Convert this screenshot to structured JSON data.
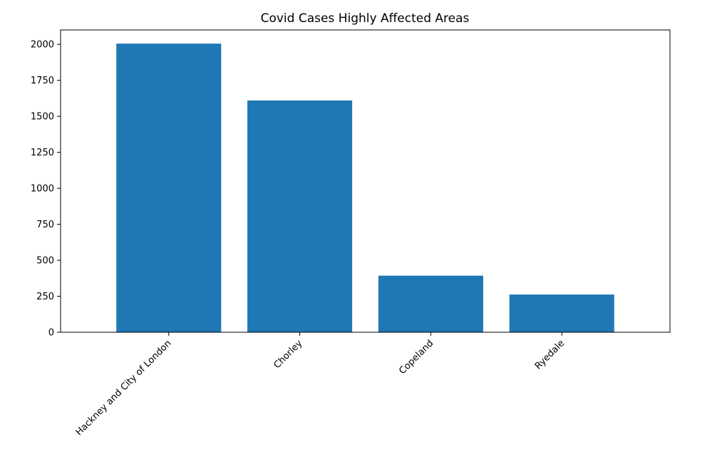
{
  "chart_data": {
    "type": "bar",
    "title": "Covid Cases Highly Affected Areas",
    "xlabel": "",
    "ylabel": "",
    "categories": [
      "Hackney and City of London",
      "Chorley",
      "Copeland",
      "Ryedale"
    ],
    "values": [
      2005,
      1610,
      393,
      262
    ],
    "ylim": [
      0,
      2100
    ],
    "yticks": [
      0,
      250,
      500,
      750,
      1000,
      1250,
      1500,
      1750,
      2000
    ],
    "bar_color": "#1f77b4",
    "grid": false,
    "legend": "none"
  }
}
